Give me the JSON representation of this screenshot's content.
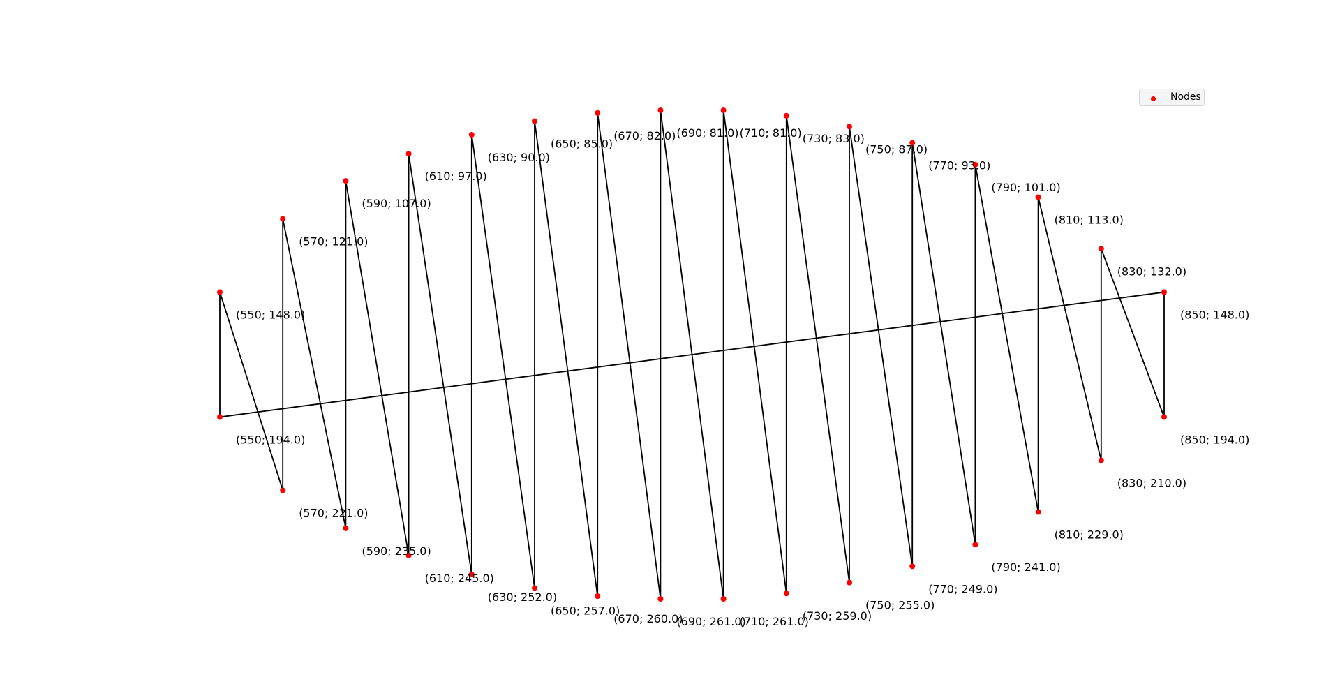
{
  "chart_data": {
    "type": "scatter",
    "title": "",
    "xlabel": "",
    "ylabel": "",
    "axes_visible": false,
    "grid": false,
    "xlim": [
      550,
      850
    ],
    "ylim": [
      81,
      261
    ],
    "y_axis_direction": "inverted",
    "legend": {
      "placement": "top-right",
      "entries": [
        "Nodes"
      ]
    },
    "series": [
      {
        "name": "Nodes",
        "marker_color": "#ff0000",
        "line_color": "#000000",
        "points": [
          {
            "x": 550,
            "y": 148.0,
            "label": "(550; 148.0)"
          },
          {
            "x": 550,
            "y": 194.0,
            "label": "(550; 194.0)"
          },
          {
            "x": 570,
            "y": 121.0,
            "label": "(570; 121.0)"
          },
          {
            "x": 570,
            "y": 221.0,
            "label": "(570; 221.0)"
          },
          {
            "x": 590,
            "y": 107.0,
            "label": "(590; 107.0)"
          },
          {
            "x": 590,
            "y": 235.0,
            "label": "(590; 235.0)"
          },
          {
            "x": 610,
            "y": 97.0,
            "label": "(610; 97.0)"
          },
          {
            "x": 610,
            "y": 245.0,
            "label": "(610; 245.0)"
          },
          {
            "x": 630,
            "y": 90.0,
            "label": "(630; 90.0)"
          },
          {
            "x": 630,
            "y": 252.0,
            "label": "(630; 252.0)"
          },
          {
            "x": 650,
            "y": 85.0,
            "label": "(650; 85.0)"
          },
          {
            "x": 650,
            "y": 257.0,
            "label": "(650; 257.0)"
          },
          {
            "x": 670,
            "y": 82.0,
            "label": "(670; 82.0)"
          },
          {
            "x": 670,
            "y": 260.0,
            "label": "(670; 260.0)"
          },
          {
            "x": 690,
            "y": 81.0,
            "label": "(690; 81.0)"
          },
          {
            "x": 690,
            "y": 261.0,
            "label": "(690; 261.0)"
          },
          {
            "x": 710,
            "y": 81.0,
            "label": "(710; 81.0)"
          },
          {
            "x": 710,
            "y": 261.0,
            "label": "(710; 261.0)"
          },
          {
            "x": 730,
            "y": 83.0,
            "label": "(730; 83.0)"
          },
          {
            "x": 730,
            "y": 259.0,
            "label": "(730; 259.0)"
          },
          {
            "x": 750,
            "y": 87.0,
            "label": "(750; 87.0)"
          },
          {
            "x": 750,
            "y": 255.0,
            "label": "(750; 255.0)"
          },
          {
            "x": 770,
            "y": 93.0,
            "label": "(770; 93.0)"
          },
          {
            "x": 770,
            "y": 249.0,
            "label": "(770; 249.0)"
          },
          {
            "x": 790,
            "y": 101.0,
            "label": "(790; 101.0)"
          },
          {
            "x": 790,
            "y": 241.0,
            "label": "(790; 241.0)"
          },
          {
            "x": 810,
            "y": 113.0,
            "label": "(810; 113.0)"
          },
          {
            "x": 810,
            "y": 229.0,
            "label": "(810; 229.0)"
          },
          {
            "x": 830,
            "y": 132.0,
            "label": "(830; 132.0)"
          },
          {
            "x": 830,
            "y": 210.0,
            "label": "(830; 210.0)"
          },
          {
            "x": 850,
            "y": 148.0,
            "label": "(850; 148.0)"
          },
          {
            "x": 850,
            "y": 194.0,
            "label": "(850; 194.0)"
          }
        ],
        "edges": [
          [
            [
              550,
              148.0
            ],
            [
              550,
              194.0
            ]
          ],
          [
            [
              550,
              148.0
            ],
            [
              570,
              221.0
            ]
          ],
          [
            [
              570,
              121.0
            ],
            [
              570,
              221.0
            ]
          ],
          [
            [
              570,
              121.0
            ],
            [
              590,
              235.0
            ]
          ],
          [
            [
              590,
              107.0
            ],
            [
              590,
              235.0
            ]
          ],
          [
            [
              590,
              107.0
            ],
            [
              610,
              245.0
            ]
          ],
          [
            [
              610,
              97.0
            ],
            [
              610,
              245.0
            ]
          ],
          [
            [
              610,
              97.0
            ],
            [
              630,
              252.0
            ]
          ],
          [
            [
              630,
              90.0
            ],
            [
              630,
              252.0
            ]
          ],
          [
            [
              630,
              90.0
            ],
            [
              650,
              257.0
            ]
          ],
          [
            [
              650,
              85.0
            ],
            [
              650,
              257.0
            ]
          ],
          [
            [
              650,
              85.0
            ],
            [
              670,
              260.0
            ]
          ],
          [
            [
              670,
              82.0
            ],
            [
              670,
              260.0
            ]
          ],
          [
            [
              670,
              82.0
            ],
            [
              690,
              261.0
            ]
          ],
          [
            [
              690,
              81.0
            ],
            [
              690,
              261.0
            ]
          ],
          [
            [
              690,
              81.0
            ],
            [
              710,
              261.0
            ]
          ],
          [
            [
              710,
              81.0
            ],
            [
              710,
              261.0
            ]
          ],
          [
            [
              710,
              81.0
            ],
            [
              730,
              259.0
            ]
          ],
          [
            [
              730,
              83.0
            ],
            [
              730,
              259.0
            ]
          ],
          [
            [
              730,
              83.0
            ],
            [
              750,
              255.0
            ]
          ],
          [
            [
              750,
              87.0
            ],
            [
              750,
              255.0
            ]
          ],
          [
            [
              750,
              87.0
            ],
            [
              770,
              249.0
            ]
          ],
          [
            [
              770,
              93.0
            ],
            [
              770,
              249.0
            ]
          ],
          [
            [
              770,
              93.0
            ],
            [
              790,
              241.0
            ]
          ],
          [
            [
              790,
              101.0
            ],
            [
              790,
              241.0
            ]
          ],
          [
            [
              790,
              101.0
            ],
            [
              810,
              229.0
            ]
          ],
          [
            [
              810,
              113.0
            ],
            [
              810,
              229.0
            ]
          ],
          [
            [
              810,
              113.0
            ],
            [
              830,
              210.0
            ]
          ],
          [
            [
              830,
              132.0
            ],
            [
              830,
              210.0
            ]
          ],
          [
            [
              830,
              132.0
            ],
            [
              850,
              194.0
            ]
          ],
          [
            [
              850,
              148.0
            ],
            [
              850,
              194.0
            ]
          ],
          [
            [
              550,
              194.0
            ],
            [
              850,
              148.0
            ]
          ]
        ]
      }
    ]
  },
  "legend": {
    "label": "Nodes"
  }
}
